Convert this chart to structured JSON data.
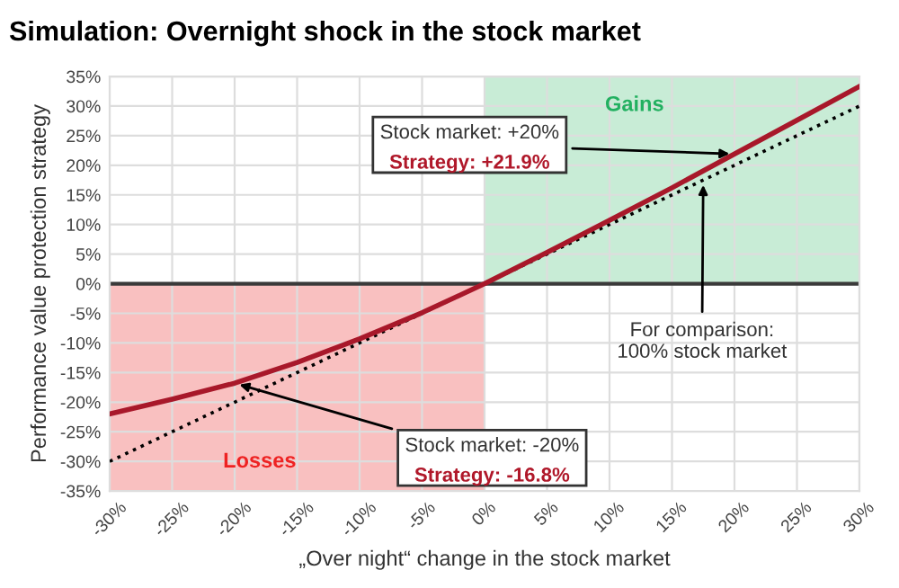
{
  "chart_data": {
    "type": "line",
    "title": "Simulation: Overnight shock in the stock market",
    "xlabel": "„Over night“ change in the stock market",
    "ylabel": "Performance value protection strategy",
    "x": [
      -30,
      -25,
      -20,
      -15,
      -10,
      -5,
      0,
      5,
      10,
      15,
      20,
      25,
      30
    ],
    "series": [
      {
        "color": "#a8182a",
        "line_style": "solid",
        "values": [
          -22,
          -19.5,
          -16.8,
          -13.3,
          -9.3,
          -4.9,
          0,
          5.3,
          10.7,
          16.2,
          21.9,
          27.6,
          33.3
        ]
      },
      {
        "color": "#000000",
        "line_style": "dotted",
        "values": [
          -30,
          -25,
          -20,
          -15,
          -10,
          -5,
          0,
          5,
          10,
          15,
          20,
          25,
          30
        ]
      }
    ],
    "xlim": [
      -30,
      30
    ],
    "ylim": [
      -35,
      35
    ],
    "xticks": [
      {
        "value": -30,
        "label": "-30%"
      },
      {
        "value": -25,
        "label": "-25%"
      },
      {
        "value": -20,
        "label": "-20%"
      },
      {
        "value": -15,
        "label": "-15%"
      },
      {
        "value": -10,
        "label": "-10%"
      },
      {
        "value": -5,
        "label": "-5%"
      },
      {
        "value": 0,
        "label": "0%"
      },
      {
        "value": 5,
        "label": "5%"
      },
      {
        "value": 10,
        "label": "10%"
      },
      {
        "value": 15,
        "label": "15%"
      },
      {
        "value": 20,
        "label": "20%"
      },
      {
        "value": 25,
        "label": "25%"
      },
      {
        "value": 30,
        "label": "30%"
      }
    ],
    "yticks": [
      {
        "value": -35,
        "label": "-35%"
      },
      {
        "value": -30,
        "label": "-30%"
      },
      {
        "value": -25,
        "label": "-25%"
      },
      {
        "value": -20,
        "label": "-20%"
      },
      {
        "value": -15,
        "label": "-15%"
      },
      {
        "value": -10,
        "label": "-10%"
      },
      {
        "value": -5,
        "label": "-5%"
      },
      {
        "value": 0,
        "label": "0%"
      },
      {
        "value": 5,
        "label": "5%"
      },
      {
        "value": 10,
        "label": "10%"
      },
      {
        "value": 15,
        "label": "15%"
      },
      {
        "value": 20,
        "label": "20%"
      },
      {
        "value": 25,
        "label": "25%"
      },
      {
        "value": 30,
        "label": "30%"
      },
      {
        "value": 35,
        "label": "35%"
      }
    ],
    "grid": true,
    "marker": "none",
    "bands": [
      {
        "axis": "x",
        "from": -30,
        "to": 0,
        "label": "Losses",
        "color": "#f9c0c0"
      },
      {
        "axis": "x",
        "from": 0,
        "to": 30,
        "label": "Gains",
        "color": "#c8ecd6"
      }
    ],
    "ref_lines": [
      {
        "axis": "y",
        "value": 0,
        "label": null,
        "color": "#3a3a3a",
        "line_style": "solid"
      }
    ],
    "annotations": [
      {
        "text": "Stock market: +20%",
        "x": 20,
        "y": 21.9
      },
      "Strategy: +21.9%",
      {
        "text": "Stock market: -20%",
        "x": -20,
        "y": -16.8
      },
      "Strategy: -16.8%",
      {
        "text": "For comparison:\n100% stock market",
        "x": 17.5,
        "y": 17.5
      }
    ]
  }
}
